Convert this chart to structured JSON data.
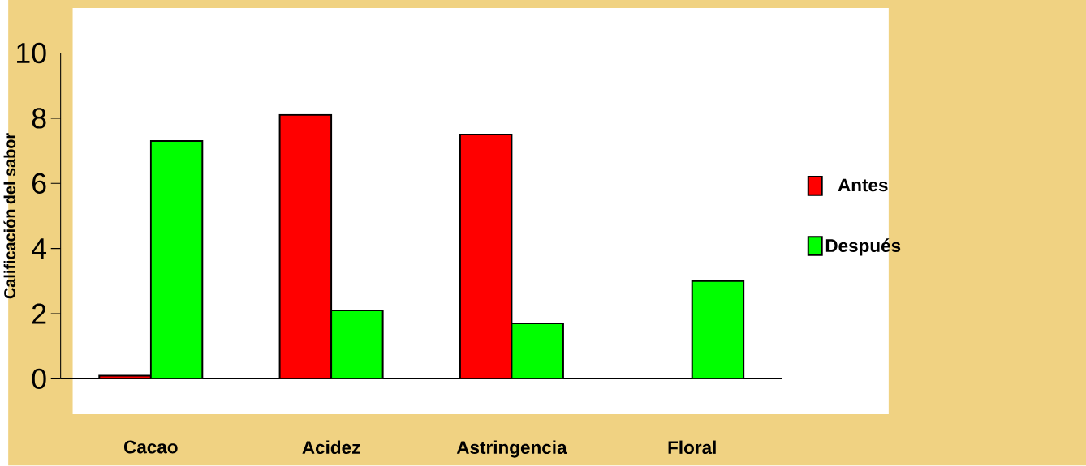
{
  "chart_data": {
    "type": "bar",
    "ylabel": "Calificación del sabor",
    "categories": [
      "Cacao",
      "Acidez",
      "Astringencia",
      "Floral"
    ],
    "series": [
      {
        "name": "Antes",
        "color": "#ff0000",
        "values": [
          0.1,
          8.1,
          7.5,
          null
        ]
      },
      {
        "name": "Después",
        "color": "#00ff00",
        "values": [
          7.3,
          2.1,
          1.7,
          3.0
        ]
      }
    ],
    "ylim": [
      0,
      10
    ],
    "yticks": [
      0,
      2,
      4,
      6,
      8,
      10
    ],
    "grid": false,
    "legend": "right"
  }
}
